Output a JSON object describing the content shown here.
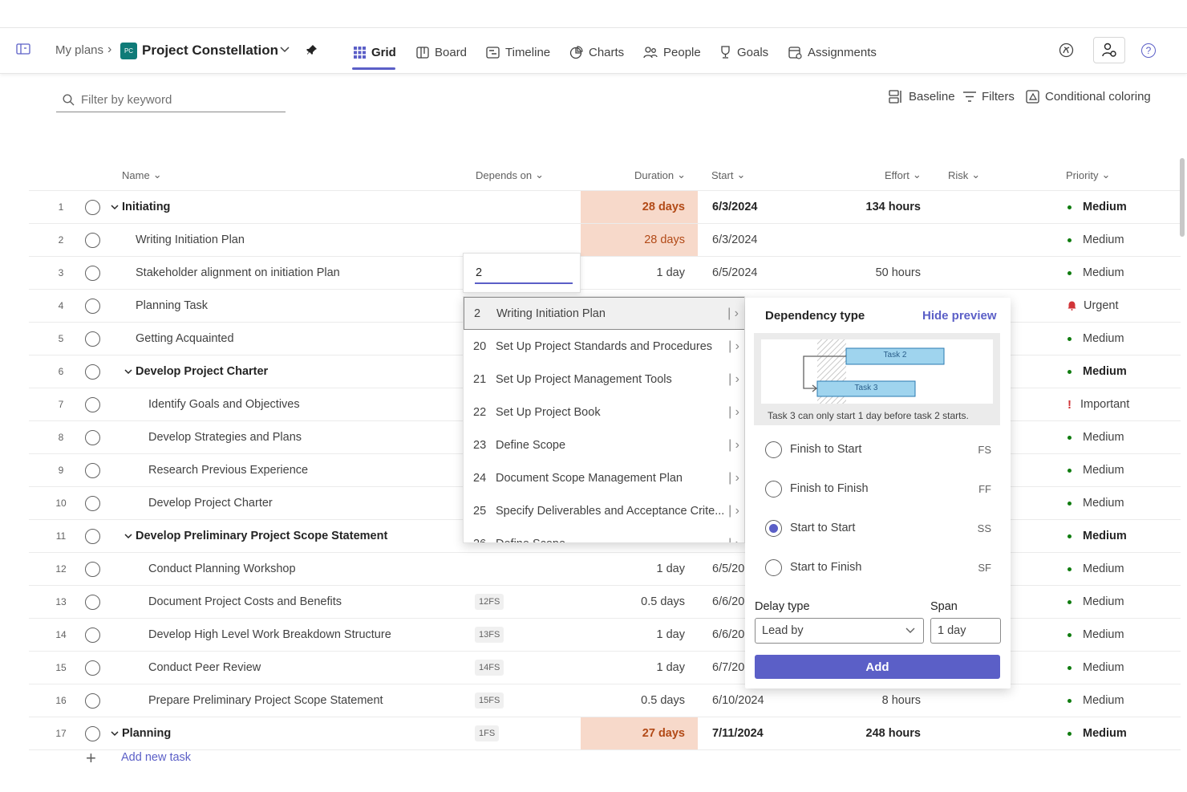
{
  "nav": {
    "my_plans": "My plans",
    "plan_icon_text": "PC",
    "plan_title": "Project Constellation"
  },
  "tabs": [
    "Grid",
    "Board",
    "Timeline",
    "Charts",
    "People",
    "Goals",
    "Assignments"
  ],
  "active_tab": "Grid",
  "filter": {
    "placeholder": "Filter by keyword"
  },
  "toolbar": {
    "baseline": "Baseline",
    "filters": "Filters",
    "conditional_coloring": "Conditional coloring"
  },
  "columns": {
    "name": "Name",
    "depends_on": "Depends on",
    "duration": "Duration",
    "start": "Start",
    "effort": "Effort",
    "risk": "Risk",
    "priority": "Priority"
  },
  "rows": [
    {
      "n": "1",
      "name": "Initiating",
      "bold": true,
      "level": 0,
      "group": true,
      "dep": "",
      "dur": "28 days",
      "durhl": true,
      "start": "6/3/2024",
      "effort": "134 hours",
      "pri": "Medium",
      "pri_kind": "dot"
    },
    {
      "n": "2",
      "name": "Writing Initiation Plan",
      "level": 1,
      "dep": "",
      "dur": "28 days",
      "durhl": true,
      "start": "6/3/2024",
      "effort": "",
      "pri": "Medium",
      "pri_kind": "dot"
    },
    {
      "n": "3",
      "name": "Stakeholder alignment on initiation Plan",
      "level": 1,
      "dep": "",
      "dur": "1 day",
      "start": "6/5/2024",
      "effort": "50 hours",
      "pri": "Medium",
      "pri_kind": "dot"
    },
    {
      "n": "4",
      "name": "Planning Task",
      "level": 1,
      "dep": "",
      "dur": "",
      "start": "",
      "effort": "",
      "pri": "Urgent",
      "pri_kind": "bell"
    },
    {
      "n": "5",
      "name": "Getting Acquainted",
      "level": 1,
      "dep": "",
      "dur": "",
      "start": "",
      "effort": "",
      "pri": "Medium",
      "pri_kind": "dot"
    },
    {
      "n": "6",
      "name": "Develop Project Charter",
      "bold": true,
      "level": 1,
      "group": true,
      "dep": "",
      "dur": "",
      "start": "",
      "effort": "",
      "pri": "Medium",
      "pri_kind": "dot"
    },
    {
      "n": "7",
      "name": "Identify Goals and Objectives",
      "level": 2,
      "dep": "",
      "dur": "",
      "start": "",
      "effort": "",
      "pri": "Important",
      "pri_kind": "bang"
    },
    {
      "n": "8",
      "name": "Develop Strategies and Plans",
      "level": 2,
      "dep": "",
      "dur": "",
      "start": "",
      "effort": "",
      "pri": "Medium",
      "pri_kind": "dot"
    },
    {
      "n": "9",
      "name": "Research Previous Experience",
      "level": 2,
      "dep": "",
      "dur": "",
      "start": "",
      "effort": "",
      "pri": "Medium",
      "pri_kind": "dot"
    },
    {
      "n": "10",
      "name": "Develop Project Charter",
      "level": 2,
      "dep": "",
      "dur": "",
      "start": "",
      "effort": "",
      "pri": "Medium",
      "pri_kind": "dot"
    },
    {
      "n": "11",
      "name": "Develop Preliminary Project Scope Statement",
      "bold": true,
      "level": 1,
      "group": true,
      "dep": "",
      "dur": "",
      "start": "",
      "effort": "",
      "pri": "Medium",
      "pri_kind": "dot"
    },
    {
      "n": "12",
      "name": "Conduct Planning Workshop",
      "level": 2,
      "dep": "",
      "dur": "1 day",
      "start": "6/5/20",
      "effort": "",
      "pri": "Medium",
      "pri_kind": "dot"
    },
    {
      "n": "13",
      "name": "Document Project Costs and Benefits",
      "level": 2,
      "dep": "12FS",
      "dur": "0.5 days",
      "start": "6/6/20",
      "effort": "",
      "pri": "Medium",
      "pri_kind": "dot"
    },
    {
      "n": "14",
      "name": "Develop High Level Work Breakdown Structure",
      "level": 2,
      "dep": "13FS",
      "dur": "1 day",
      "start": "6/6/20",
      "effort": "",
      "pri": "Medium",
      "pri_kind": "dot"
    },
    {
      "n": "15",
      "name": "Conduct Peer Review",
      "level": 2,
      "dep": "14FS",
      "dur": "1 day",
      "start": "6/7/20",
      "effort": "",
      "pri": "Medium",
      "pri_kind": "dot"
    },
    {
      "n": "16",
      "name": "Prepare Preliminary Project Scope Statement",
      "level": 2,
      "dep": "15FS",
      "dur": "0.5 days",
      "start": "6/10/2024",
      "effort": "8 hours",
      "pri": "Medium",
      "pri_kind": "dot"
    },
    {
      "n": "17",
      "name": "Planning",
      "bold": true,
      "level": 0,
      "group": true,
      "dep": "1FS",
      "dur": "27 days",
      "durhl": true,
      "start": "7/11/2024",
      "effort": "248 hours",
      "pri": "Medium",
      "pri_kind": "dot"
    }
  ],
  "add_task": "Add new task",
  "depends_edit_value": "2",
  "dropdown_items": [
    {
      "id": "2",
      "label": "Writing Initiation Plan"
    },
    {
      "id": "20",
      "label": "Set Up Project Standards and Procedures"
    },
    {
      "id": "21",
      "label": "Set Up Project Management Tools"
    },
    {
      "id": "22",
      "label": "Set Up Project Book"
    },
    {
      "id": "23",
      "label": "Define Scope"
    },
    {
      "id": "24",
      "label": "Document Scope Management Plan"
    },
    {
      "id": "25",
      "label": "Specify Deliverables and Acceptance Crite..."
    },
    {
      "id": "26",
      "label": "Define Scope"
    }
  ],
  "panel": {
    "title": "Dependency type",
    "hide_preview": "Hide preview",
    "task2": "Task 2",
    "task3": "Task 3",
    "preview_caption": "Task 3 can only start 1 day before task 2 starts.",
    "options": [
      {
        "label": "Finish to Start",
        "abbr": "FS",
        "checked": false
      },
      {
        "label": "Finish to Finish",
        "abbr": "FF",
        "checked": false
      },
      {
        "label": "Start to Start",
        "abbr": "SS",
        "checked": true
      },
      {
        "label": "Start to Finish",
        "abbr": "SF",
        "checked": false
      }
    ],
    "delay_type_label": "Delay type",
    "delay_type_value": "Lead by",
    "span_label": "Span",
    "span_value": "1 day",
    "add": "Add"
  },
  "colors": {
    "accent": "#5b5fc7",
    "duration_highlight": "#f7d9ca",
    "duration_text": "#b24a17",
    "medium": "#107c10",
    "urgent": "#d13438"
  }
}
